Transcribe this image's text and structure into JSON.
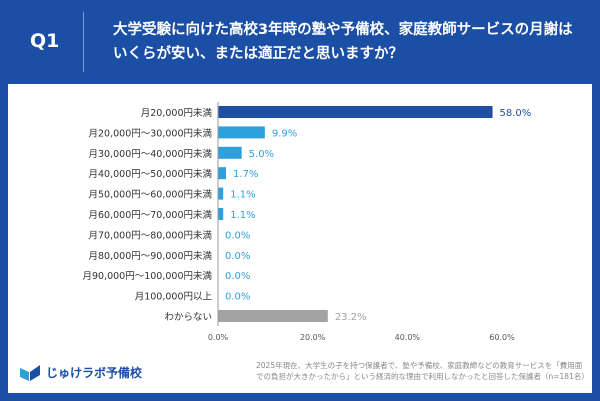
{
  "header": {
    "q": "Q1",
    "title": "大学受験に向けた高校3年時の塾や予備校、家庭教師サービスの月謝はいくらが安い、または適正だと思いますか？"
  },
  "chart_data": {
    "type": "bar",
    "orientation": "horizontal",
    "categories": [
      "月20,000円未満",
      "月20,000円～30,000円未満",
      "月30,000円～40,000円未満",
      "月40,000円～50,000円未満",
      "月50,000円～60,000円未満",
      "月60,000円～70,000円未満",
      "月70,000円～80,000円未満",
      "月80,000円～90,000円未満",
      "月90,000円～100,000円未満",
      "月100,000円以上",
      "わからない"
    ],
    "values": [
      58.0,
      9.9,
      5.0,
      1.7,
      1.1,
      1.1,
      0.0,
      0.0,
      0.0,
      0.0,
      23.2
    ],
    "value_labels": [
      "58.0%",
      "9.9%",
      "5.0%",
      "1.7%",
      "1.1%",
      "1.1%",
      "0.0%",
      "0.0%",
      "0.0%",
      "0.0%",
      "23.2%"
    ],
    "xlim": [
      0,
      60
    ],
    "xticks": [
      "0.0%",
      "20.0%",
      "40.0%",
      "60.0%"
    ],
    "colors": {
      "top": "#1f4fa3",
      "mid": "#2ea0dc",
      "unknown": "#a3a3a3"
    },
    "grid": false
  },
  "footer": {
    "logo": "じゅけラボ予備校",
    "note": "2025年現在、大学生の子を持つ保護者で、塾や予備校、家庭教師などの教育サービスを「費用面での負担が大きかったから」という経済的な理由で利用しなかったと回答した保護者（n=181名）"
  }
}
